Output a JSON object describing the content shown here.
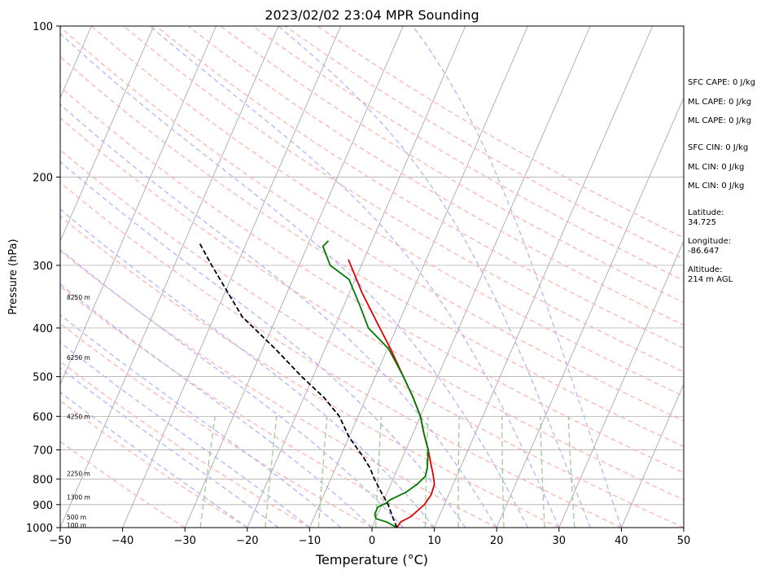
{
  "chart_data": {
    "type": "line",
    "chart_kind": "skew-t log-p sounding",
    "title": "2023/02/02 23:04 MPR Sounding",
    "xlabel": "Temperature (°C)",
    "ylabel": "Pressure (hPa)",
    "xlim": [
      -50,
      50
    ],
    "ylim": [
      1000,
      100
    ],
    "y_scale": "log",
    "skew": 35,
    "x_ticks": [
      -50,
      -40,
      -30,
      -20,
      -10,
      0,
      10,
      20,
      30,
      40,
      50
    ],
    "x_tick_labels": [
      "−50",
      "−40",
      "−30",
      "−20",
      "−10",
      "0",
      "10",
      "20",
      "30",
      "40",
      "50"
    ],
    "y_ticks": [
      100,
      200,
      300,
      400,
      500,
      600,
      700,
      800,
      900,
      1000
    ],
    "y_tick_labels": [
      "100",
      "200",
      "300",
      "400",
      "500",
      "600",
      "700",
      "800",
      "900",
      "1000"
    ],
    "grid": true,
    "background_lines": [
      "isotherms",
      "dry adiabats",
      "moist adiabats",
      "mixing ratio lines"
    ],
    "colors": {
      "temperature": "#e00000",
      "dewpoint": "#007a00",
      "parcel": "#000000",
      "dry_adiabat": "#ffb3b3",
      "moist_adiabat": "#b3b3ff",
      "mixing_ratio": "#99cc99",
      "isotherm": "#a0a0a0"
    },
    "series": [
      {
        "key": "temperature",
        "x": [
          4.0,
          4.2,
          5.5,
          6.8,
          7.2,
          7.0,
          6.0,
          5.4,
          3.6,
          1.8,
          0.0,
          -2.5,
          -5.5,
          -9.5,
          -13.5,
          -18.0,
          -22.5
        ],
        "y": [
          1000,
          975,
          950,
          900,
          860,
          820,
          780,
          760,
          700,
          650,
          600,
          550,
          500,
          440,
          390,
          340,
          292
        ]
      },
      {
        "key": "dewpoint",
        "x": [
          4.0,
          2.0,
          0.0,
          -0.5,
          -0.5,
          0.5,
          1.0,
          3.0,
          4.2,
          5.0,
          4.7,
          3.6,
          1.8,
          0.0,
          -2.5,
          -5.5,
          -9.8,
          -14.5,
          -17.5,
          -21.0,
          -25.0,
          -27.5,
          -27.0
        ],
        "y": [
          1000,
          975,
          960,
          940,
          910,
          895,
          880,
          850,
          820,
          790,
          760,
          700,
          650,
          600,
          550,
          500,
          440,
          400,
          360,
          320,
          300,
          275,
          268
        ]
      },
      {
        "key": "parcel",
        "x": [
          4.0,
          2.5,
          1.0,
          -1.0,
          -3.0,
          -4.5,
          -6.5,
          -10.0,
          -13.0,
          -16.8,
          -21.8,
          -28.0,
          -35.5,
          -44.0,
          -47.5
        ],
        "y": [
          1000,
          950,
          900,
          850,
          800,
          760,
          720,
          660,
          600,
          550,
          500,
          440,
          380,
          300,
          271
        ]
      }
    ],
    "height_labels": [
      {
        "text": "100 m",
        "p": 988
      },
      {
        "text": "500 m",
        "p": 952
      },
      {
        "text": "1300 m",
        "p": 870
      },
      {
        "text": "2250 m",
        "p": 780
      },
      {
        "text": "4250 m",
        "p": 600
      },
      {
        "text": "6250 m",
        "p": 458
      },
      {
        "text": "8250 m",
        "p": 347
      }
    ]
  },
  "side_panel": [
    "SFC CAPE: 0 J/kg",
    "ML CAPE: 0 J/kg",
    "ML CAPE: 0 J/kg",
    "SFC CIN: 0 J/kg",
    "ML CIN: 0 J/kg",
    "ML CIN: 0 J/kg",
    "Latitude:",
    "34.725",
    "Longitude:",
    "-86.647",
    "Altitude:",
    "214 m AGL"
  ]
}
